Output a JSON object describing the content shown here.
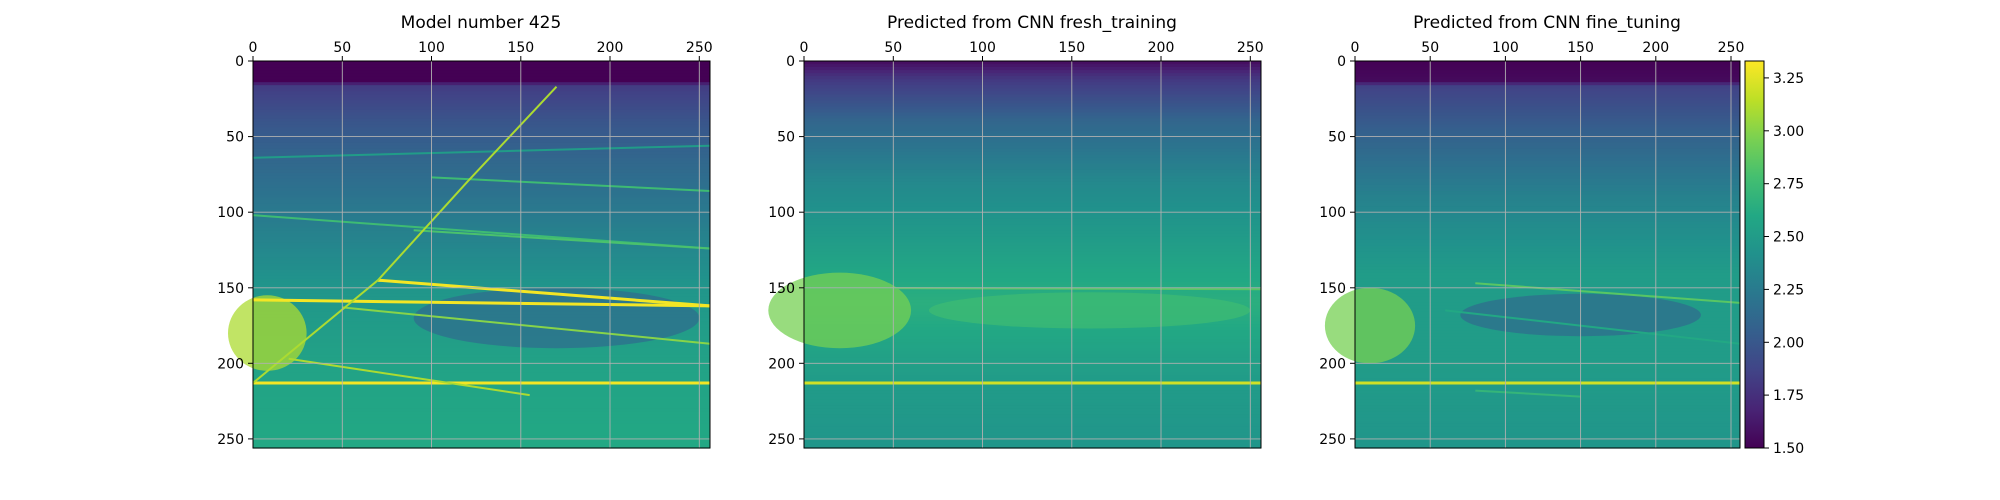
{
  "chart_data": [
    {
      "type": "heatmap",
      "title": "Model number 425",
      "x_ticks": [
        0,
        50,
        100,
        150,
        200,
        250
      ],
      "y_ticks": [
        0,
        50,
        100,
        150,
        200,
        250
      ],
      "xlim": [
        0,
        256
      ],
      "ylim": [
        256,
        0
      ],
      "x_axis_position": "top",
      "grid": true,
      "colormap": "viridis",
      "background_profile": [
        {
          "depth": 0,
          "value": 1.5
        },
        {
          "depth": 14,
          "value": 1.5
        },
        {
          "depth": 16,
          "value": 1.82
        },
        {
          "depth": 40,
          "value": 1.98
        },
        {
          "depth": 64,
          "value": 2.1
        },
        {
          "depth": 102,
          "value": 2.25
        },
        {
          "depth": 150,
          "value": 2.45
        },
        {
          "depth": 200,
          "value": 2.55
        },
        {
          "depth": 256,
          "value": 2.6
        }
      ],
      "features": [
        {
          "kind": "line",
          "points": [
            [
              0,
              158
            ],
            [
              256,
              162
            ]
          ],
          "value": 3.3
        },
        {
          "kind": "line",
          "points": [
            [
              0,
              213
            ],
            [
              256,
              213
            ]
          ],
          "value": 3.3
        },
        {
          "kind": "line",
          "points": [
            [
              0,
              102
            ],
            [
              256,
              124
            ]
          ],
          "value": 2.75
        },
        {
          "kind": "line",
          "points": [
            [
              0,
              64
            ],
            [
              256,
              56
            ]
          ],
          "value": 2.5
        },
        {
          "kind": "line",
          "points": [
            [
              100,
              77
            ],
            [
              256,
              86
            ]
          ],
          "value": 2.75
        },
        {
          "kind": "line",
          "points": [
            [
              90,
              112
            ],
            [
              256,
              124
            ]
          ],
          "value": 2.8
        },
        {
          "kind": "line",
          "points": [
            [
              70,
              145
            ],
            [
              256,
              162
            ]
          ],
          "value": 3.3
        },
        {
          "kind": "line",
          "points": [
            [
              50,
              163
            ],
            [
              256,
              187
            ]
          ],
          "value": 3.0
        },
        {
          "kind": "line",
          "points": [
            [
              20,
              197
            ],
            [
              155,
              221
            ]
          ],
          "value": 3.1
        },
        {
          "kind": "line",
          "points": [
            [
              0,
              213
            ],
            [
              70,
              145
            ],
            [
              120,
              80
            ],
            [
              170,
              17
            ]
          ],
          "value": 3.1
        },
        {
          "kind": "blob",
          "center": [
            8,
            180
          ],
          "radius": [
            22,
            25
          ],
          "value": 3.1
        },
        {
          "kind": "blob",
          "center": [
            170,
            170
          ],
          "radius": [
            80,
            20
          ],
          "value": 2.15
        }
      ]
    },
    {
      "type": "heatmap",
      "title": "Predicted from CNN fresh_training",
      "x_ticks": [
        0,
        50,
        100,
        150,
        200,
        250
      ],
      "y_ticks": [
        0,
        50,
        100,
        150,
        200,
        250
      ],
      "xlim": [
        0,
        256
      ],
      "ylim": [
        256,
        0
      ],
      "x_axis_position": "top",
      "grid": true,
      "colormap": "viridis",
      "background_profile": [
        {
          "depth": 0,
          "value": 1.55
        },
        {
          "depth": 12,
          "value": 1.8
        },
        {
          "depth": 40,
          "value": 2.1
        },
        {
          "depth": 80,
          "value": 2.35
        },
        {
          "depth": 130,
          "value": 2.55
        },
        {
          "depth": 160,
          "value": 2.65
        },
        {
          "depth": 210,
          "value": 2.5
        },
        {
          "depth": 256,
          "value": 2.45
        }
      ],
      "features": [
        {
          "kind": "line",
          "points": [
            [
              0,
              213
            ],
            [
              256,
              213
            ]
          ],
          "value": 3.2
        },
        {
          "kind": "line",
          "points": [
            [
              0,
              150
            ],
            [
              256,
              151
            ]
          ],
          "value": 2.85
        },
        {
          "kind": "blob",
          "center": [
            20,
            165
          ],
          "radius": [
            40,
            25
          ],
          "value": 2.95
        },
        {
          "kind": "blob",
          "center": [
            160,
            165
          ],
          "radius": [
            90,
            12
          ],
          "value": 2.75
        }
      ]
    },
    {
      "type": "heatmap",
      "title": "Predicted from CNN fine_tuning",
      "x_ticks": [
        0,
        50,
        100,
        150,
        200,
        250
      ],
      "y_ticks": [
        0,
        50,
        100,
        150,
        200,
        250
      ],
      "xlim": [
        0,
        256
      ],
      "ylim": [
        256,
        0
      ],
      "x_axis_position": "top",
      "grid": true,
      "colormap": "viridis",
      "background_profile": [
        {
          "depth": 0,
          "value": 1.5
        },
        {
          "depth": 14,
          "value": 1.55
        },
        {
          "depth": 16,
          "value": 1.85
        },
        {
          "depth": 45,
          "value": 2.05
        },
        {
          "depth": 90,
          "value": 2.3
        },
        {
          "depth": 140,
          "value": 2.5
        },
        {
          "depth": 200,
          "value": 2.5
        },
        {
          "depth": 256,
          "value": 2.45
        }
      ],
      "features": [
        {
          "kind": "line",
          "points": [
            [
              0,
              213
            ],
            [
              256,
              213
            ]
          ],
          "value": 3.2
        },
        {
          "kind": "line",
          "points": [
            [
              80,
              147
            ],
            [
              256,
              160
            ]
          ],
          "value": 2.85
        },
        {
          "kind": "line",
          "points": [
            [
              60,
              165
            ],
            [
              256,
              187
            ]
          ],
          "value": 2.6
        },
        {
          "kind": "line",
          "points": [
            [
              80,
              218
            ],
            [
              150,
              222
            ]
          ],
          "value": 2.7
        },
        {
          "kind": "blob",
          "center": [
            10,
            175
          ],
          "radius": [
            30,
            25
          ],
          "value": 2.95
        },
        {
          "kind": "blob",
          "center": [
            150,
            168
          ],
          "radius": [
            80,
            14
          ],
          "value": 2.15
        }
      ]
    }
  ],
  "colorbar": {
    "min": 1.5,
    "max": 3.33,
    "ticks": [
      "1.50",
      "1.75",
      "2.00",
      "2.25",
      "2.50",
      "2.75",
      "3.00",
      "3.25"
    ],
    "tick_values": [
      1.5,
      1.75,
      2.0,
      2.25,
      2.5,
      2.75,
      3.0,
      3.25
    ]
  }
}
